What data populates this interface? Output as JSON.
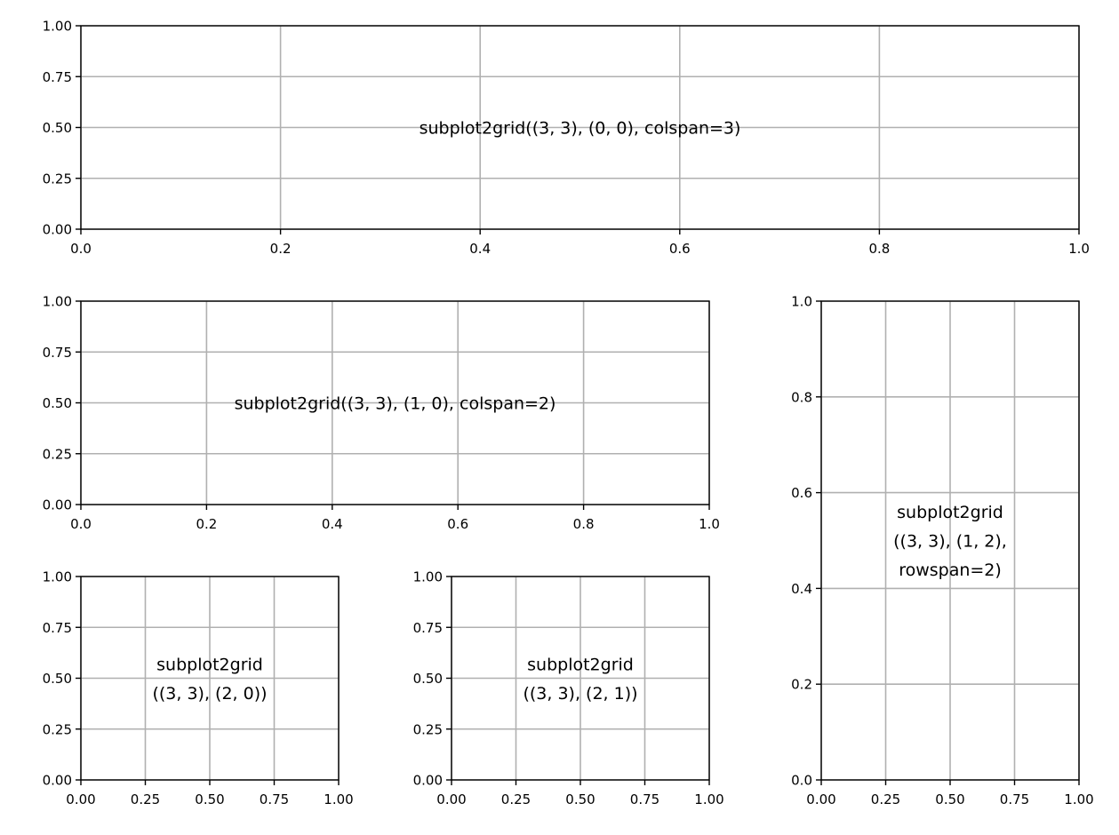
{
  "chart_data": [
    {
      "type": "line",
      "title": "",
      "xlabel": "",
      "ylabel": "",
      "xlim": [
        0,
        1
      ],
      "ylim": [
        0,
        1
      ],
      "grid": true,
      "series": [],
      "xticks": [
        0.0,
        0.2,
        0.4,
        0.6,
        0.8,
        1.0
      ],
      "xtick_labels": [
        "0.0",
        "0.2",
        "0.4",
        "0.6",
        "0.8",
        "1.0"
      ],
      "yticks": [
        0.0,
        0.25,
        0.5,
        0.75,
        1.0
      ],
      "ytick_labels": [
        "0.00",
        "0.25",
        "0.50",
        "0.75",
        "1.00"
      ],
      "annotation": {
        "text": [
          "subplot2grid((3, 3), (0, 0), colspan=3)"
        ],
        "x": 0.5,
        "y": 0.5
      }
    },
    {
      "type": "line",
      "title": "",
      "xlabel": "",
      "ylabel": "",
      "xlim": [
        0,
        1
      ],
      "ylim": [
        0,
        1
      ],
      "grid": true,
      "series": [],
      "xticks": [
        0.0,
        0.2,
        0.4,
        0.6,
        0.8,
        1.0
      ],
      "xtick_labels": [
        "0.0",
        "0.2",
        "0.4",
        "0.6",
        "0.8",
        "1.0"
      ],
      "yticks": [
        0.0,
        0.25,
        0.5,
        0.75,
        1.0
      ],
      "ytick_labels": [
        "0.00",
        "0.25",
        "0.50",
        "0.75",
        "1.00"
      ],
      "annotation": {
        "text": [
          "subplot2grid((3, 3), (1, 0), colspan=2)"
        ],
        "x": 0.5,
        "y": 0.5
      }
    },
    {
      "type": "line",
      "title": "",
      "xlabel": "",
      "ylabel": "",
      "xlim": [
        0,
        1
      ],
      "ylim": [
        0,
        1
      ],
      "grid": true,
      "series": [],
      "xticks": [
        0.0,
        0.25,
        0.5,
        0.75,
        1.0
      ],
      "xtick_labels": [
        "0.00",
        "0.25",
        "0.50",
        "0.75",
        "1.00"
      ],
      "yticks": [
        0.0,
        0.2,
        0.4,
        0.6,
        0.8,
        1.0
      ],
      "ytick_labels": [
        "0.0",
        "0.2",
        "0.4",
        "0.6",
        "0.8",
        "1.0"
      ],
      "annotation": {
        "text": [
          "subplot2grid",
          "((3, 3), (1, 2),",
          "rowspan=2)"
        ],
        "x": 0.5,
        "y": 0.5
      }
    },
    {
      "type": "line",
      "title": "",
      "xlabel": "",
      "ylabel": "",
      "xlim": [
        0,
        1
      ],
      "ylim": [
        0,
        1
      ],
      "grid": true,
      "series": [],
      "xticks": [
        0.0,
        0.25,
        0.5,
        0.75,
        1.0
      ],
      "xtick_labels": [
        "0.00",
        "0.25",
        "0.50",
        "0.75",
        "1.00"
      ],
      "yticks": [
        0.0,
        0.25,
        0.5,
        0.75,
        1.0
      ],
      "ytick_labels": [
        "0.00",
        "0.25",
        "0.50",
        "0.75",
        "1.00"
      ],
      "annotation": {
        "text": [
          "subplot2grid",
          "((3, 3), (2, 0))"
        ],
        "x": 0.5,
        "y": 0.5
      }
    },
    {
      "type": "line",
      "title": "",
      "xlabel": "",
      "ylabel": "",
      "xlim": [
        0,
        1
      ],
      "ylim": [
        0,
        1
      ],
      "grid": true,
      "series": [],
      "xticks": [
        0.0,
        0.25,
        0.5,
        0.75,
        1.0
      ],
      "xtick_labels": [
        "0.00",
        "0.25",
        "0.50",
        "0.75",
        "1.00"
      ],
      "yticks": [
        0.0,
        0.25,
        0.5,
        0.75,
        1.0
      ],
      "ytick_labels": [
        "0.00",
        "0.25",
        "0.50",
        "0.75",
        "1.00"
      ],
      "annotation": {
        "text": [
          "subplot2grid",
          "((3, 3), (2, 1))"
        ],
        "x": 0.5,
        "y": 0.5
      }
    }
  ]
}
